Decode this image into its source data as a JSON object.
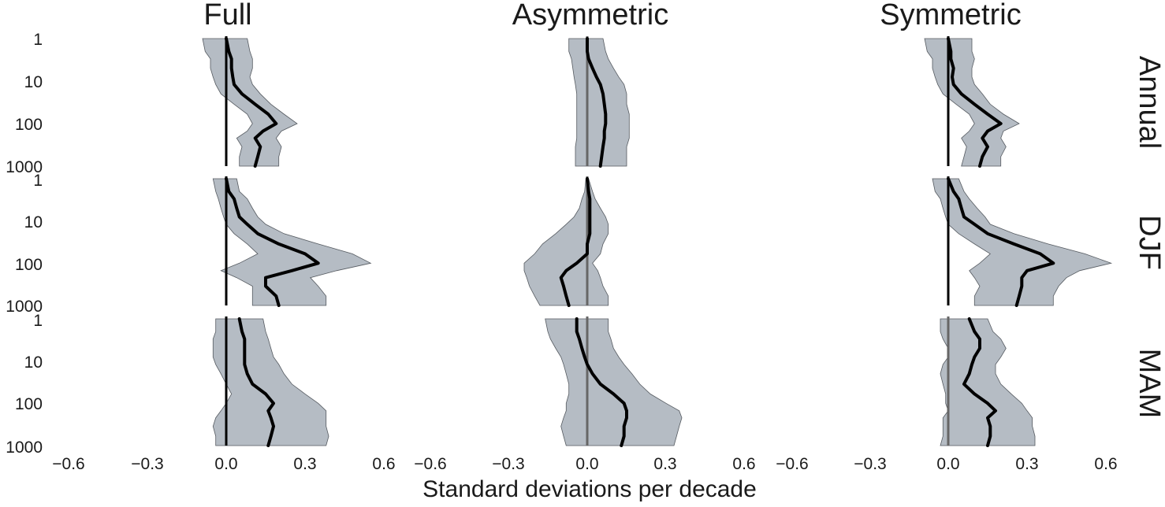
{
  "chart_data": {
    "type": "line",
    "xlabel": "Standard deviations per decade",
    "xlim": [
      -0.6,
      0.6
    ],
    "x_ticks": [
      "−0.6",
      "−0.3",
      "0.0",
      "0.3",
      "0.6"
    ],
    "y_ticks": [
      "1",
      "10",
      "100",
      "1000"
    ],
    "y_scale": "log",
    "ylim": [
      1,
      1000
    ],
    "y_inverted": true,
    "grid": false,
    "colors": {
      "band": "#b5bcc4",
      "band_edge": "#555a60",
      "median": "#000000",
      "zero_line_dark": "#000000",
      "zero_line_gray": "#666666"
    },
    "columns": [
      "Full",
      "Asymmetric",
      "Symmetric"
    ],
    "rows": [
      "Annual",
      "DJF",
      "MAM"
    ],
    "panels": [
      {
        "row": 0,
        "col": 0,
        "y": [
          1,
          2,
          3,
          5,
          8,
          12,
          20,
          35,
          60,
          100,
          150,
          220,
          350,
          600,
          1000
        ],
        "median": [
          0,
          0.01,
          0.02,
          0.02,
          0.025,
          0.03,
          0.06,
          0.11,
          0.16,
          0.19,
          0.14,
          0.11,
          0.13,
          0.12,
          0.11
        ],
        "lower": [
          -0.09,
          -0.08,
          -0.06,
          -0.06,
          -0.05,
          -0.04,
          -0.02,
          0.03,
          0.08,
          0.1,
          0.08,
          0.04,
          0.06,
          0.05,
          0.05
        ],
        "upper": [
          0.08,
          0.09,
          0.1,
          0.1,
          0.09,
          0.1,
          0.13,
          0.17,
          0.22,
          0.27,
          0.21,
          0.19,
          0.21,
          0.2,
          0.2
        ]
      },
      {
        "row": 0,
        "col": 1,
        "y": [
          1,
          2,
          3,
          5,
          8,
          12,
          20,
          35,
          60,
          100,
          150,
          220,
          350,
          600,
          1000
        ],
        "median": [
          0,
          0,
          0.005,
          0.02,
          0.035,
          0.05,
          0.06,
          0.065,
          0.07,
          0.07,
          0.065,
          0.065,
          0.06,
          0.055,
          0.05
        ],
        "lower": [
          -0.07,
          -0.07,
          -0.06,
          -0.055,
          -0.05,
          -0.045,
          -0.04,
          -0.04,
          -0.04,
          -0.04,
          -0.04,
          -0.04,
          -0.045,
          -0.045,
          -0.045
        ],
        "upper": [
          0.06,
          0.07,
          0.08,
          0.1,
          0.12,
          0.14,
          0.15,
          0.15,
          0.16,
          0.16,
          0.16,
          0.16,
          0.15,
          0.15,
          0.15
        ]
      },
      {
        "row": 0,
        "col": 2,
        "y": [
          1,
          2,
          3,
          5,
          8,
          12,
          20,
          35,
          60,
          100,
          150,
          220,
          350,
          600,
          1000
        ],
        "median": [
          0,
          0.01,
          0.01,
          0.02,
          0.015,
          0.02,
          0.05,
          0.1,
          0.15,
          0.2,
          0.15,
          0.13,
          0.15,
          0.13,
          0.12
        ],
        "lower": [
          -0.09,
          -0.08,
          -0.06,
          -0.06,
          -0.05,
          -0.04,
          -0.02,
          0.03,
          0.08,
          0.1,
          0.08,
          0.05,
          0.07,
          0.06,
          0.05
        ],
        "upper": [
          0.09,
          0.09,
          0.1,
          0.09,
          0.09,
          0.1,
          0.13,
          0.16,
          0.21,
          0.27,
          0.21,
          0.2,
          0.22,
          0.2,
          0.2
        ]
      },
      {
        "row": 1,
        "col": 0,
        "y": [
          1,
          2,
          3,
          5,
          8,
          12,
          20,
          35,
          60,
          100,
          150,
          220,
          350,
          600,
          1000
        ],
        "median": [
          0,
          0.01,
          0.03,
          0.04,
          0.05,
          0.08,
          0.12,
          0.2,
          0.3,
          0.35,
          0.25,
          0.15,
          0.15,
          0.19,
          0.2
        ],
        "lower": [
          -0.05,
          -0.04,
          -0.03,
          -0.02,
          -0.01,
          0.0,
          0.03,
          0.08,
          0.12,
          0.05,
          -0.02,
          0.04,
          0.1,
          0.1,
          0.1
        ],
        "upper": [
          0.04,
          0.05,
          0.08,
          0.1,
          0.12,
          0.15,
          0.22,
          0.35,
          0.48,
          0.55,
          0.42,
          0.32,
          0.35,
          0.38,
          0.38
        ]
      },
      {
        "row": 1,
        "col": 1,
        "y": [
          1,
          2,
          3,
          5,
          8,
          12,
          20,
          35,
          60,
          100,
          150,
          220,
          350,
          600,
          1000
        ],
        "median": [
          0,
          0.005,
          0.01,
          0.01,
          0.01,
          0.01,
          0.01,
          0.0,
          0.0,
          -0.04,
          -0.08,
          -0.1,
          -0.09,
          -0.08,
          -0.07
        ],
        "lower": [
          -0.005,
          -0.01,
          -0.02,
          -0.03,
          -0.05,
          -0.08,
          -0.12,
          -0.17,
          -0.2,
          -0.24,
          -0.24,
          -0.23,
          -0.22,
          -0.2,
          -0.18
        ],
        "upper": [
          0.005,
          0.02,
          0.03,
          0.05,
          0.07,
          0.08,
          0.08,
          0.06,
          0.05,
          0.02,
          0.04,
          0.05,
          0.06,
          0.08,
          0.08
        ]
      },
      {
        "row": 1,
        "col": 2,
        "y": [
          1,
          2,
          3,
          5,
          8,
          12,
          20,
          35,
          60,
          100,
          150,
          220,
          350,
          600,
          1000
        ],
        "median": [
          0,
          0.02,
          0.04,
          0.05,
          0.06,
          0.1,
          0.15,
          0.25,
          0.35,
          0.4,
          0.3,
          0.28,
          0.28,
          0.27,
          0.26
        ],
        "lower": [
          -0.06,
          -0.05,
          -0.03,
          -0.02,
          -0.01,
          0.0,
          0.04,
          0.1,
          0.16,
          0.12,
          0.08,
          0.1,
          0.12,
          0.1,
          0.1
        ],
        "upper": [
          0.04,
          0.06,
          0.08,
          0.11,
          0.14,
          0.16,
          0.25,
          0.38,
          0.52,
          0.62,
          0.5,
          0.45,
          0.42,
          0.4,
          0.4
        ]
      },
      {
        "row": 2,
        "col": 0,
        "y": [
          1,
          2,
          3,
          5,
          8,
          12,
          20,
          35,
          60,
          100,
          150,
          220,
          350,
          600,
          1000
        ],
        "median": [
          0.05,
          0.06,
          0.07,
          0.07,
          0.07,
          0.07,
          0.08,
          0.1,
          0.15,
          0.18,
          0.16,
          0.17,
          0.18,
          0.17,
          0.16
        ],
        "lower": [
          -0.04,
          -0.04,
          -0.05,
          -0.05,
          -0.05,
          -0.04,
          -0.02,
          0.0,
          0.02,
          0.0,
          -0.02,
          -0.04,
          -0.05,
          -0.04,
          -0.04
        ],
        "upper": [
          0.14,
          0.15,
          0.16,
          0.17,
          0.18,
          0.2,
          0.22,
          0.25,
          0.3,
          0.35,
          0.38,
          0.38,
          0.38,
          0.39,
          0.38
        ]
      },
      {
        "row": 2,
        "col": 1,
        "y": [
          1,
          2,
          3,
          5,
          8,
          12,
          20,
          35,
          60,
          100,
          150,
          220,
          350,
          600,
          1000
        ],
        "median": [
          -0.04,
          -0.04,
          -0.03,
          -0.02,
          -0.01,
          0.0,
          0.02,
          0.05,
          0.1,
          0.14,
          0.15,
          0.15,
          0.14,
          0.14,
          0.13
        ],
        "lower": [
          -0.16,
          -0.15,
          -0.14,
          -0.12,
          -0.1,
          -0.09,
          -0.08,
          -0.07,
          -0.07,
          -0.08,
          -0.08,
          -0.09,
          -0.1,
          -0.09,
          -0.08
        ],
        "upper": [
          0.08,
          0.08,
          0.09,
          0.1,
          0.12,
          0.14,
          0.17,
          0.2,
          0.24,
          0.3,
          0.35,
          0.36,
          0.35,
          0.34,
          0.33
        ]
      },
      {
        "row": 2,
        "col": 2,
        "y": [
          1,
          2,
          3,
          5,
          8,
          12,
          20,
          35,
          60,
          100,
          150,
          220,
          350,
          600,
          1000
        ],
        "median": [
          0.08,
          0.1,
          0.12,
          0.12,
          0.1,
          0.09,
          0.08,
          0.06,
          0.1,
          0.15,
          0.18,
          0.15,
          0.16,
          0.16,
          0.15
        ],
        "lower": [
          -0.03,
          -0.03,
          -0.02,
          0.0,
          0.0,
          -0.02,
          -0.03,
          -0.02,
          -0.01,
          -0.01,
          0.0,
          -0.02,
          -0.02,
          -0.02,
          -0.03
        ],
        "upper": [
          0.15,
          0.17,
          0.2,
          0.22,
          0.2,
          0.18,
          0.18,
          0.2,
          0.24,
          0.28,
          0.3,
          0.32,
          0.32,
          0.33,
          0.33
        ]
      }
    ]
  }
}
